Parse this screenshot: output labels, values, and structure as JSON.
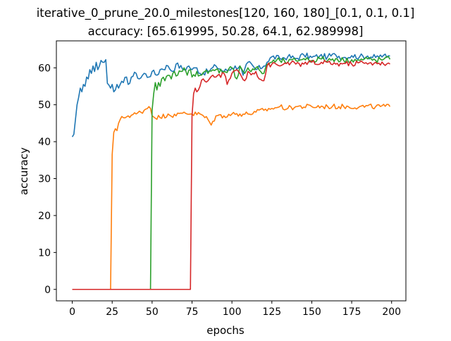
{
  "chart_data": {
    "type": "line",
    "title_line1": "iterative_0_prune_20.0_milestones[120, 160, 180]_[0.1, 0.1, 0.1]",
    "title_line2": "accuracy: [65.619995, 50.28, 64.1, 62.989998]",
    "xlabel": "epochs",
    "ylabel": "accuracy",
    "xlim": [
      -9.95,
      208.95
    ],
    "ylim": [
      -3.1,
      67.3
    ],
    "xticks": [
      0,
      25,
      50,
      75,
      100,
      125,
      150,
      175,
      200
    ],
    "yticks": [
      0,
      10,
      20,
      30,
      40,
      50,
      60
    ],
    "grid": false,
    "legend": "none",
    "series": [
      {
        "color": "#1f77b4",
        "start": 0,
        "anchors": [
          [
            0,
            41.3
          ],
          [
            1,
            42
          ],
          [
            2,
            46
          ],
          [
            3,
            50
          ],
          [
            4,
            52
          ],
          [
            5,
            54.5
          ],
          [
            6,
            53.5
          ],
          [
            7,
            55.5
          ],
          [
            8,
            55
          ],
          [
            9,
            57.5
          ],
          [
            10,
            57
          ],
          [
            11,
            59.5
          ],
          [
            12,
            58.5
          ],
          [
            13,
            60.5
          ],
          [
            14,
            59
          ],
          [
            15,
            61.5
          ],
          [
            16,
            59.5
          ],
          [
            17,
            60.5
          ],
          [
            18,
            62
          ],
          [
            19,
            61.5
          ],
          [
            20,
            61.5
          ],
          [
            21,
            62.2
          ],
          [
            22,
            55.8
          ],
          [
            23,
            55.3
          ],
          [
            24,
            54.5
          ],
          [
            25,
            55.5
          ],
          [
            26,
            53.5
          ],
          [
            27,
            54
          ],
          [
            28,
            55.5
          ],
          [
            29,
            54.5
          ],
          [
            30,
            55.5
          ],
          [
            32,
            56
          ],
          [
            34,
            57.5
          ],
          [
            35,
            55.5
          ],
          [
            37,
            57.5
          ],
          [
            40,
            58.5
          ],
          [
            42,
            57
          ],
          [
            45,
            58.5
          ],
          [
            48,
            57.5
          ],
          [
            50,
            59
          ],
          [
            53,
            58
          ],
          [
            55,
            59.5
          ],
          [
            60,
            60.5
          ],
          [
            63,
            59
          ],
          [
            65,
            61
          ],
          [
            70,
            59.5
          ],
          [
            73,
            60.5
          ],
          [
            75,
            59.5
          ],
          [
            78,
            60
          ],
          [
            80,
            58.5
          ],
          [
            85,
            59
          ],
          [
            90,
            60.5
          ],
          [
            95,
            59
          ],
          [
            100,
            60
          ],
          [
            105,
            60.5
          ],
          [
            107,
            58
          ],
          [
            110,
            61.5
          ],
          [
            115,
            59.5
          ],
          [
            120,
            60.5
          ],
          [
            122,
            61.5
          ],
          [
            125,
            63
          ],
          [
            130,
            62.5
          ],
          [
            135,
            63
          ],
          [
            140,
            62.5
          ],
          [
            145,
            63.5
          ],
          [
            150,
            62.8
          ],
          [
            155,
            63.2
          ],
          [
            160,
            63
          ],
          [
            165,
            63.5
          ],
          [
            170,
            62.8
          ],
          [
            175,
            63.3
          ],
          [
            180,
            63
          ],
          [
            185,
            63.2
          ],
          [
            190,
            62.8
          ],
          [
            195,
            63.4
          ],
          [
            197,
            62.8
          ],
          [
            199,
            63.2
          ]
        ],
        "noise": 0.8
      },
      {
        "color": "#ff7f0e",
        "start": 0,
        "anchors": [
          [
            0,
            0
          ],
          [
            24,
            0
          ],
          [
            25,
            36.5
          ],
          [
            26,
            42.5
          ],
          [
            27,
            43.5
          ],
          [
            28,
            43
          ],
          [
            29,
            45
          ],
          [
            30,
            46
          ],
          [
            32,
            46.5
          ],
          [
            35,
            47
          ],
          [
            40,
            47.5
          ],
          [
            45,
            48.5
          ],
          [
            48,
            49.5
          ],
          [
            49,
            49
          ],
          [
            50,
            47
          ],
          [
            55,
            46.5
          ],
          [
            60,
            47.5
          ],
          [
            65,
            47
          ],
          [
            70,
            48
          ],
          [
            75,
            47.5
          ],
          [
            80,
            47.5
          ],
          [
            85,
            46
          ],
          [
            87,
            44.5
          ],
          [
            90,
            47
          ],
          [
            95,
            47
          ],
          [
            100,
            47.5
          ],
          [
            105,
            47.5
          ],
          [
            110,
            47.5
          ],
          [
            115,
            48
          ],
          [
            120,
            48.5
          ],
          [
            125,
            49
          ],
          [
            130,
            49.5
          ],
          [
            135,
            49
          ],
          [
            140,
            49.5
          ],
          [
            150,
            49.5
          ],
          [
            160,
            49.5
          ],
          [
            170,
            49.5
          ],
          [
            180,
            49.5
          ],
          [
            190,
            49.5
          ],
          [
            199,
            49.5
          ]
        ],
        "noise": 0.7
      },
      {
        "color": "#2ca02c",
        "start": 0,
        "anchors": [
          [
            0,
            0
          ],
          [
            49,
            0
          ],
          [
            50,
            48.5
          ],
          [
            51,
            53
          ],
          [
            52,
            56
          ],
          [
            53,
            54
          ],
          [
            54,
            56
          ],
          [
            55,
            55
          ],
          [
            56,
            57
          ],
          [
            58,
            56.5
          ],
          [
            60,
            58
          ],
          [
            62,
            57
          ],
          [
            64,
            59
          ],
          [
            66,
            58
          ],
          [
            68,
            59
          ],
          [
            70,
            60
          ],
          [
            72,
            58
          ],
          [
            74,
            59.5
          ],
          [
            75,
            57.5
          ],
          [
            78,
            59
          ],
          [
            80,
            58
          ],
          [
            83,
            59
          ],
          [
            85,
            58.5
          ],
          [
            90,
            59.5
          ],
          [
            95,
            59
          ],
          [
            100,
            60
          ],
          [
            103,
            57
          ],
          [
            105,
            60.5
          ],
          [
            108,
            58.5
          ],
          [
            110,
            60
          ],
          [
            112,
            59
          ],
          [
            115,
            60
          ],
          [
            118,
            59
          ],
          [
            120,
            58.5
          ],
          [
            122,
            61
          ],
          [
            125,
            61.5
          ],
          [
            130,
            62
          ],
          [
            135,
            61.5
          ],
          [
            140,
            62
          ],
          [
            145,
            62.5
          ],
          [
            150,
            62
          ],
          [
            155,
            62.5
          ],
          [
            160,
            62
          ],
          [
            165,
            62.5
          ],
          [
            170,
            62
          ],
          [
            175,
            62.2
          ],
          [
            180,
            62
          ],
          [
            185,
            62.4
          ],
          [
            190,
            62
          ],
          [
            195,
            62.3
          ],
          [
            199,
            62.3
          ]
        ],
        "noise": 0.8
      },
      {
        "color": "#d62728",
        "start": 0,
        "anchors": [
          [
            0,
            0
          ],
          [
            74,
            0
          ],
          [
            75,
            47
          ],
          [
            76,
            53
          ],
          [
            77,
            54.5
          ],
          [
            78,
            53.5
          ],
          [
            79,
            54
          ],
          [
            80,
            55
          ],
          [
            82,
            57
          ],
          [
            85,
            56.5
          ],
          [
            88,
            58
          ],
          [
            90,
            57.5
          ],
          [
            95,
            58.5
          ],
          [
            97,
            55.5
          ],
          [
            100,
            58.5
          ],
          [
            103,
            59.5
          ],
          [
            105,
            58.5
          ],
          [
            108,
            56.5
          ],
          [
            110,
            59
          ],
          [
            113,
            58.5
          ],
          [
            115,
            59
          ],
          [
            117,
            57
          ],
          [
            120,
            56.5
          ],
          [
            122,
            60.5
          ],
          [
            125,
            61
          ],
          [
            130,
            60.5
          ],
          [
            135,
            61.5
          ],
          [
            140,
            61
          ],
          [
            145,
            61
          ],
          [
            150,
            61.5
          ],
          [
            155,
            61
          ],
          [
            160,
            61.5
          ],
          [
            165,
            61
          ],
          [
            170,
            61.2
          ],
          [
            175,
            61
          ],
          [
            180,
            61.5
          ],
          [
            185,
            61
          ],
          [
            190,
            61.5
          ],
          [
            195,
            61
          ],
          [
            199,
            61
          ]
        ],
        "noise": 0.7
      }
    ]
  }
}
